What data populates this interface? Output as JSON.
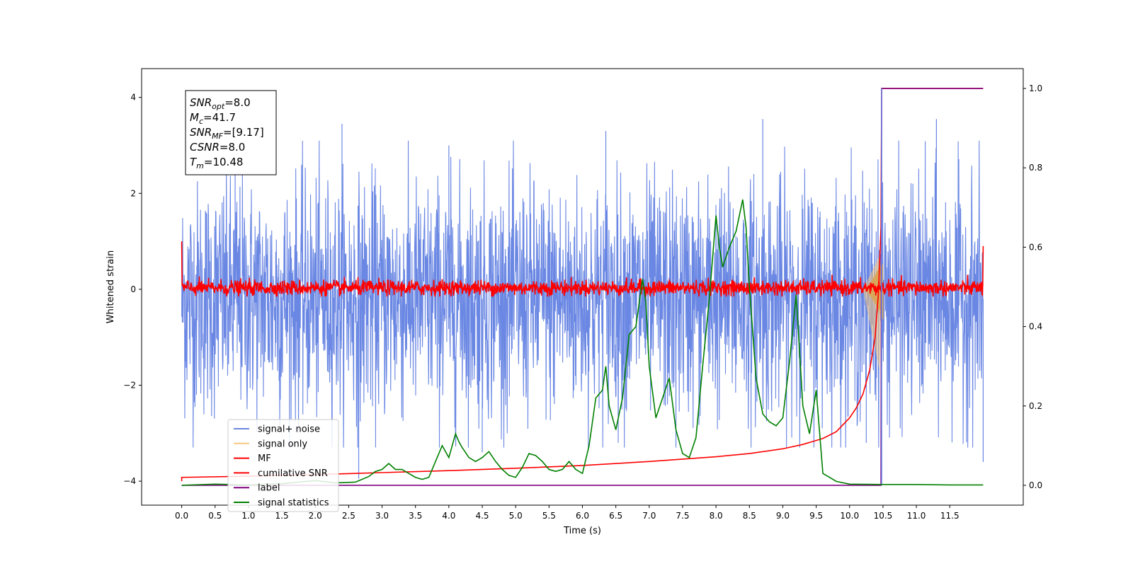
{
  "chart_data": {
    "type": "line",
    "xlabel": "Time (s)",
    "ylabel": "Whitened strain",
    "xlim": [
      -0.6,
      12.6
    ],
    "ylim_left": [
      -4.5,
      4.6
    ],
    "ylim_right": [
      -0.05,
      1.05
    ],
    "x_ticks": [
      "0.0",
      "0.5",
      "1.0",
      "1.5",
      "2.0",
      "2.5",
      "3.0",
      "3.5",
      "4.0",
      "4.5",
      "5.0",
      "5.5",
      "6.0",
      "6.5",
      "7.0",
      "7.5",
      "8.0",
      "8.5",
      "9.0",
      "9.5",
      "10.0",
      "10.5",
      "11.0",
      "11.5"
    ],
    "y_ticks_left": [
      "4",
      "2",
      "0",
      "−2",
      "−4"
    ],
    "y_ticks_left_values": [
      4,
      2,
      0,
      -2,
      -4
    ],
    "y_ticks_right": [
      "1.0",
      "0.8",
      "0.6",
      "0.4",
      "0.2",
      "0.0"
    ],
    "y_ticks_right_values": [
      1.0,
      0.8,
      0.6,
      0.4,
      0.2,
      0.0
    ],
    "legend_position": "lower-left",
    "colors": {
      "signal_noise": "#6a87e3",
      "signal_only": "#f5c77e",
      "mf": "#ff0000",
      "cumulative_snr": "#ff0000",
      "label": "#800080",
      "signal_statistics": "#008000"
    },
    "series": [
      {
        "name": "signal+ noise",
        "axis": "left",
        "style": "dense-noise",
        "x_range": [
          0.0,
          12.0
        ],
        "y_band": [
          -2.4,
          2.0
        ],
        "peaks": [
          [
            2.4,
            3.45
          ],
          [
            8.7,
            3.55
          ],
          [
            11.3,
            3.55
          ],
          [
            0.8,
            2.7
          ],
          [
            4.0,
            3.0
          ],
          [
            6.35,
            3.3
          ]
        ],
        "troughs": [
          [
            2.65,
            -3.95
          ],
          [
            4.5,
            -3.4
          ],
          [
            7.4,
            -3.3
          ],
          [
            10.25,
            -3.2
          ],
          [
            12.0,
            -3.6
          ]
        ]
      },
      {
        "name": "signal only",
        "axis": "left",
        "style": "chirp",
        "x_range": [
          10.2,
          10.5
        ],
        "peak_amplitude": 0.65
      },
      {
        "name": "MF",
        "axis": "left",
        "style": "noise",
        "x_range": [
          0.0,
          12.0
        ],
        "y_band": [
          -0.15,
          0.2
        ],
        "edge_values": [
          [
            0.0,
            1.0
          ],
          [
            12.0,
            0.9
          ]
        ]
      },
      {
        "name": "cumilative SNR",
        "axis": "right",
        "x": [
          0.0,
          1.0,
          2.0,
          3.0,
          4.0,
          5.0,
          6.0,
          7.0,
          8.0,
          8.5,
          9.0,
          9.3,
          9.6,
          9.8,
          10.0,
          10.1,
          10.2,
          10.3,
          10.38,
          10.43,
          10.47,
          10.48,
          10.5,
          12.0
        ],
        "y": [
          0.02,
          0.023,
          0.027,
          0.032,
          0.037,
          0.043,
          0.05,
          0.06,
          0.072,
          0.08,
          0.092,
          0.103,
          0.118,
          0.135,
          0.17,
          0.195,
          0.23,
          0.29,
          0.37,
          0.48,
          0.65,
          1.0,
          1.0,
          1.0
        ]
      },
      {
        "name": "label",
        "axis": "right",
        "x": [
          0.0,
          10.47,
          10.48,
          12.0
        ],
        "y": [
          0.0,
          0.0,
          1.0,
          1.0
        ]
      },
      {
        "name": "signal statistics",
        "axis": "right",
        "x": [
          0.0,
          0.5,
          1.0,
          1.5,
          2.0,
          2.3,
          2.6,
          2.8,
          2.9,
          3.0,
          3.1,
          3.2,
          3.3,
          3.4,
          3.5,
          3.6,
          3.7,
          3.8,
          3.9,
          4.0,
          4.1,
          4.15,
          4.2,
          4.3,
          4.4,
          4.5,
          4.6,
          4.7,
          4.8,
          4.9,
          5.0,
          5.1,
          5.2,
          5.3,
          5.4,
          5.5,
          5.6,
          5.7,
          5.8,
          5.9,
          6.0,
          6.1,
          6.2,
          6.3,
          6.35,
          6.4,
          6.5,
          6.6,
          6.7,
          6.8,
          6.9,
          6.95,
          7.0,
          7.1,
          7.2,
          7.3,
          7.4,
          7.5,
          7.6,
          7.7,
          7.8,
          7.9,
          8.0,
          8.05,
          8.1,
          8.2,
          8.3,
          8.4,
          8.45,
          8.5,
          8.6,
          8.7,
          8.8,
          8.9,
          9.0,
          9.1,
          9.2,
          9.3,
          9.4,
          9.5,
          9.6,
          9.7,
          9.8,
          10.0,
          10.5,
          11.0,
          11.5,
          12.0
        ],
        "y": [
          0.0,
          0.003,
          0.001,
          0.004,
          0.012,
          0.006,
          0.008,
          0.022,
          0.035,
          0.04,
          0.055,
          0.04,
          0.04,
          0.03,
          0.02,
          0.015,
          0.02,
          0.06,
          0.1,
          0.07,
          0.13,
          0.11,
          0.095,
          0.07,
          0.06,
          0.07,
          0.085,
          0.06,
          0.04,
          0.025,
          0.02,
          0.045,
          0.08,
          0.075,
          0.06,
          0.04,
          0.035,
          0.04,
          0.06,
          0.04,
          0.03,
          0.1,
          0.22,
          0.24,
          0.3,
          0.2,
          0.14,
          0.22,
          0.38,
          0.4,
          0.52,
          0.46,
          0.3,
          0.17,
          0.22,
          0.27,
          0.14,
          0.08,
          0.07,
          0.12,
          0.3,
          0.47,
          0.68,
          0.6,
          0.55,
          0.6,
          0.64,
          0.72,
          0.65,
          0.5,
          0.27,
          0.18,
          0.16,
          0.15,
          0.17,
          0.31,
          0.48,
          0.2,
          0.13,
          0.24,
          0.03,
          0.02,
          0.01,
          0.003,
          0.002,
          0.002,
          0.001,
          0.001
        ]
      }
    ],
    "annotation_box": [
      {
        "base": "SNR",
        "sub": "opt",
        "rest": "=8.0"
      },
      {
        "base": "M",
        "sub": "c",
        "rest": "=41.7"
      },
      {
        "base": "SNR",
        "sub": "MF",
        "rest": "=[9.17]"
      },
      {
        "base": "CSNR",
        "sub": "",
        "rest": "=8.0"
      },
      {
        "base": "T",
        "sub": "m",
        "rest": "=10.48"
      }
    ]
  }
}
